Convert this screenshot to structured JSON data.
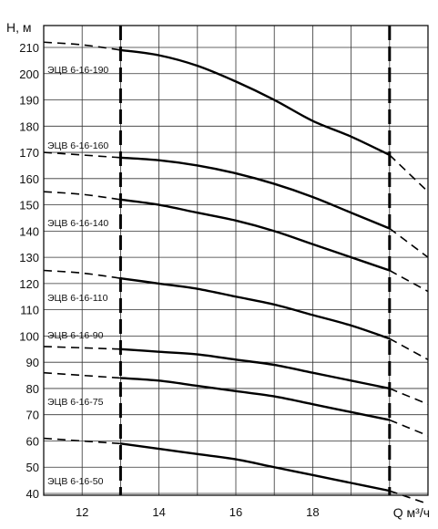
{
  "chart_data": {
    "type": "line",
    "ylabel": "H, м",
    "xlabel": "Q м³/ч",
    "xlim": [
      11,
      21
    ],
    "ylim": [
      40,
      215
    ],
    "x_ticks": [
      "12",
      "14",
      "16",
      "18"
    ],
    "y_ticks": [
      "40",
      "50",
      "60",
      "70",
      "80",
      "90",
      "100",
      "110",
      "120",
      "130",
      "140",
      "150",
      "160",
      "170",
      "180",
      "190",
      "200",
      "210"
    ],
    "grid": true,
    "operating_range": [
      13,
      20
    ],
    "series": [
      {
        "name": "ЭЦВ 6-16-190",
        "x": [
          11,
          12,
          13,
          14,
          15,
          16,
          17,
          18,
          19,
          20,
          21
        ],
        "y": [
          212,
          211,
          209,
          207,
          203,
          197,
          190,
          182,
          176,
          169,
          155
        ]
      },
      {
        "name": "ЭЦВ 6-16-160",
        "x": [
          11,
          12,
          13,
          14,
          15,
          16,
          17,
          18,
          19,
          20,
          21
        ],
        "y": [
          170,
          169,
          168,
          167,
          165,
          162,
          158,
          153,
          147,
          141,
          130
        ]
      },
      {
        "name": "ЭЦВ 6-16-140",
        "x": [
          11,
          12,
          13,
          14,
          15,
          16,
          17,
          18,
          19,
          20,
          21
        ],
        "y": [
          155,
          154,
          152,
          150,
          147,
          144,
          140,
          135,
          130,
          125,
          117
        ]
      },
      {
        "name": "ЭЦВ 6-16-110",
        "x": [
          11,
          12,
          13,
          14,
          15,
          16,
          17,
          18,
          19,
          20,
          21
        ],
        "y": [
          125,
          124,
          122,
          120,
          118,
          115,
          112,
          108,
          104,
          99,
          91
        ]
      },
      {
        "name": "ЭЦВ 6-16-90",
        "x": [
          11,
          12,
          13,
          14,
          15,
          16,
          17,
          18,
          19,
          20,
          21
        ],
        "y": [
          96,
          95.5,
          95,
          94,
          93,
          91,
          89,
          86,
          83,
          80,
          74
        ]
      },
      {
        "name": "ЭЦВ 6-16-75",
        "x": [
          11,
          12,
          13,
          14,
          15,
          16,
          17,
          18,
          19,
          20,
          21
        ],
        "y": [
          86,
          85,
          84,
          83,
          81,
          79,
          77,
          74,
          71,
          68,
          62
        ]
      },
      {
        "name": "ЭЦВ 6-16-50",
        "x": [
          11,
          12,
          13,
          14,
          15,
          16,
          17,
          18,
          19,
          20,
          21
        ],
        "y": [
          61,
          60,
          59,
          57,
          55,
          53,
          50,
          47,
          44,
          41,
          36
        ]
      }
    ]
  }
}
